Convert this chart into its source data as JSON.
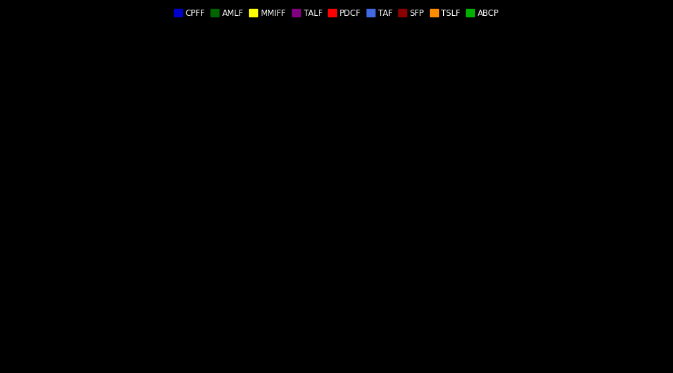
{
  "background_color": "#000000",
  "legend_colors": [
    "#0000cc",
    "#006400",
    "#ffff00",
    "#800080",
    "#ff0000",
    "#4169e1",
    "#8b0000",
    "#ff8c00",
    "#00b000"
  ],
  "legend_labels": [
    "CPFF",
    "AMLF",
    "MMIFF",
    "TALF",
    "PDCF",
    "TAF",
    "SFP",
    "TSLF",
    "ABCP"
  ],
  "figsize": [
    9.75,
    5.41
  ],
  "dpi": 100
}
